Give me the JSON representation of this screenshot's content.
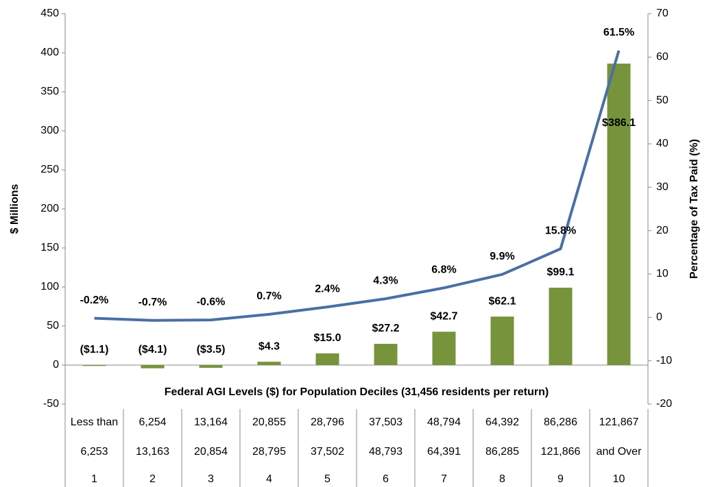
{
  "chart_data": {
    "type": "bar_line",
    "categories": [
      "1",
      "2",
      "3",
      "4",
      "5",
      "6",
      "7",
      "8",
      "9",
      "10"
    ],
    "agi_ranges": [
      [
        "Less than",
        "6,253"
      ],
      [
        "6,254",
        "13,163"
      ],
      [
        "13,164",
        "20,854"
      ],
      [
        "20,855",
        "28,795"
      ],
      [
        "28,796",
        "37,502"
      ],
      [
        "37,503",
        "48,793"
      ],
      [
        "48,794",
        "64,391"
      ],
      [
        "64,392",
        "86,285"
      ],
      [
        "86,286",
        "121,866"
      ],
      [
        "121,867",
        "and Over"
      ]
    ],
    "table_title": "Federal AGI Levels ($) for Population Deciles (31,456 residents per return)",
    "y_label": "$ Millions",
    "y2_label": "Percentage of Tax Paid (%)",
    "series": [
      {
        "name": "$ Millions",
        "type": "bar",
        "color": "#77933c",
        "values": [
          -1.1,
          -4.1,
          -3.5,
          4.3,
          15.0,
          27.2,
          42.7,
          62.1,
          99.1,
          386.1
        ],
        "value_labels": [
          "($1.1)",
          "($4.1)",
          "($3.5)",
          "$4.3",
          "$15.0",
          "$27.2",
          "$42.7",
          "$62.1",
          "$99.1",
          "$386.1"
        ]
      },
      {
        "name": "Percentage of Tax Paid",
        "type": "line",
        "axis": "y2",
        "color": "#4a6fa5",
        "values": [
          -0.2,
          -0.7,
          -0.6,
          0.7,
          2.4,
          4.3,
          6.8,
          9.9,
          15.8,
          61.5
        ],
        "value_labels": [
          "-0.2%",
          "-0.7%",
          "-0.6%",
          "0.7%",
          "2.4%",
          "4.3%",
          "6.8%",
          "9.9%",
          "15.8%",
          "61.5%"
        ]
      }
    ],
    "ylim": [
      -50,
      450
    ],
    "yticks": [
      -50,
      0,
      50,
      100,
      150,
      200,
      250,
      300,
      350,
      400,
      450
    ],
    "y2lim": [
      -20,
      70
    ],
    "y2ticks": [
      -20,
      -10,
      0,
      10,
      20,
      30,
      40,
      50,
      60,
      70
    ]
  }
}
